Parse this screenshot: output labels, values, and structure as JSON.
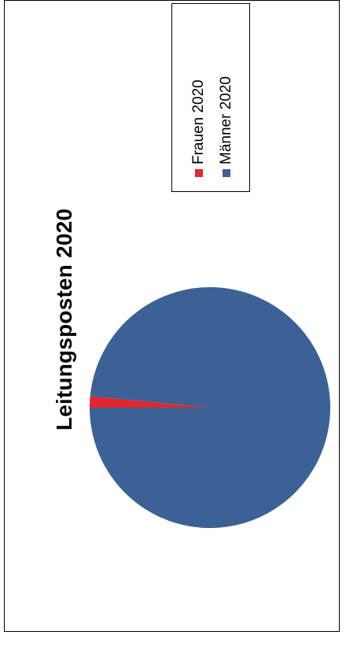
{
  "chart_data": {
    "type": "pie",
    "title": "Leitungsposten 2020",
    "labels": [
      "Frauen 2020",
      "Männer 2020"
    ],
    "values": [
      1.5,
      98.5
    ],
    "colors": [
      "#e3262d",
      "#3b6197"
    ],
    "legend_position": "top-right"
  }
}
